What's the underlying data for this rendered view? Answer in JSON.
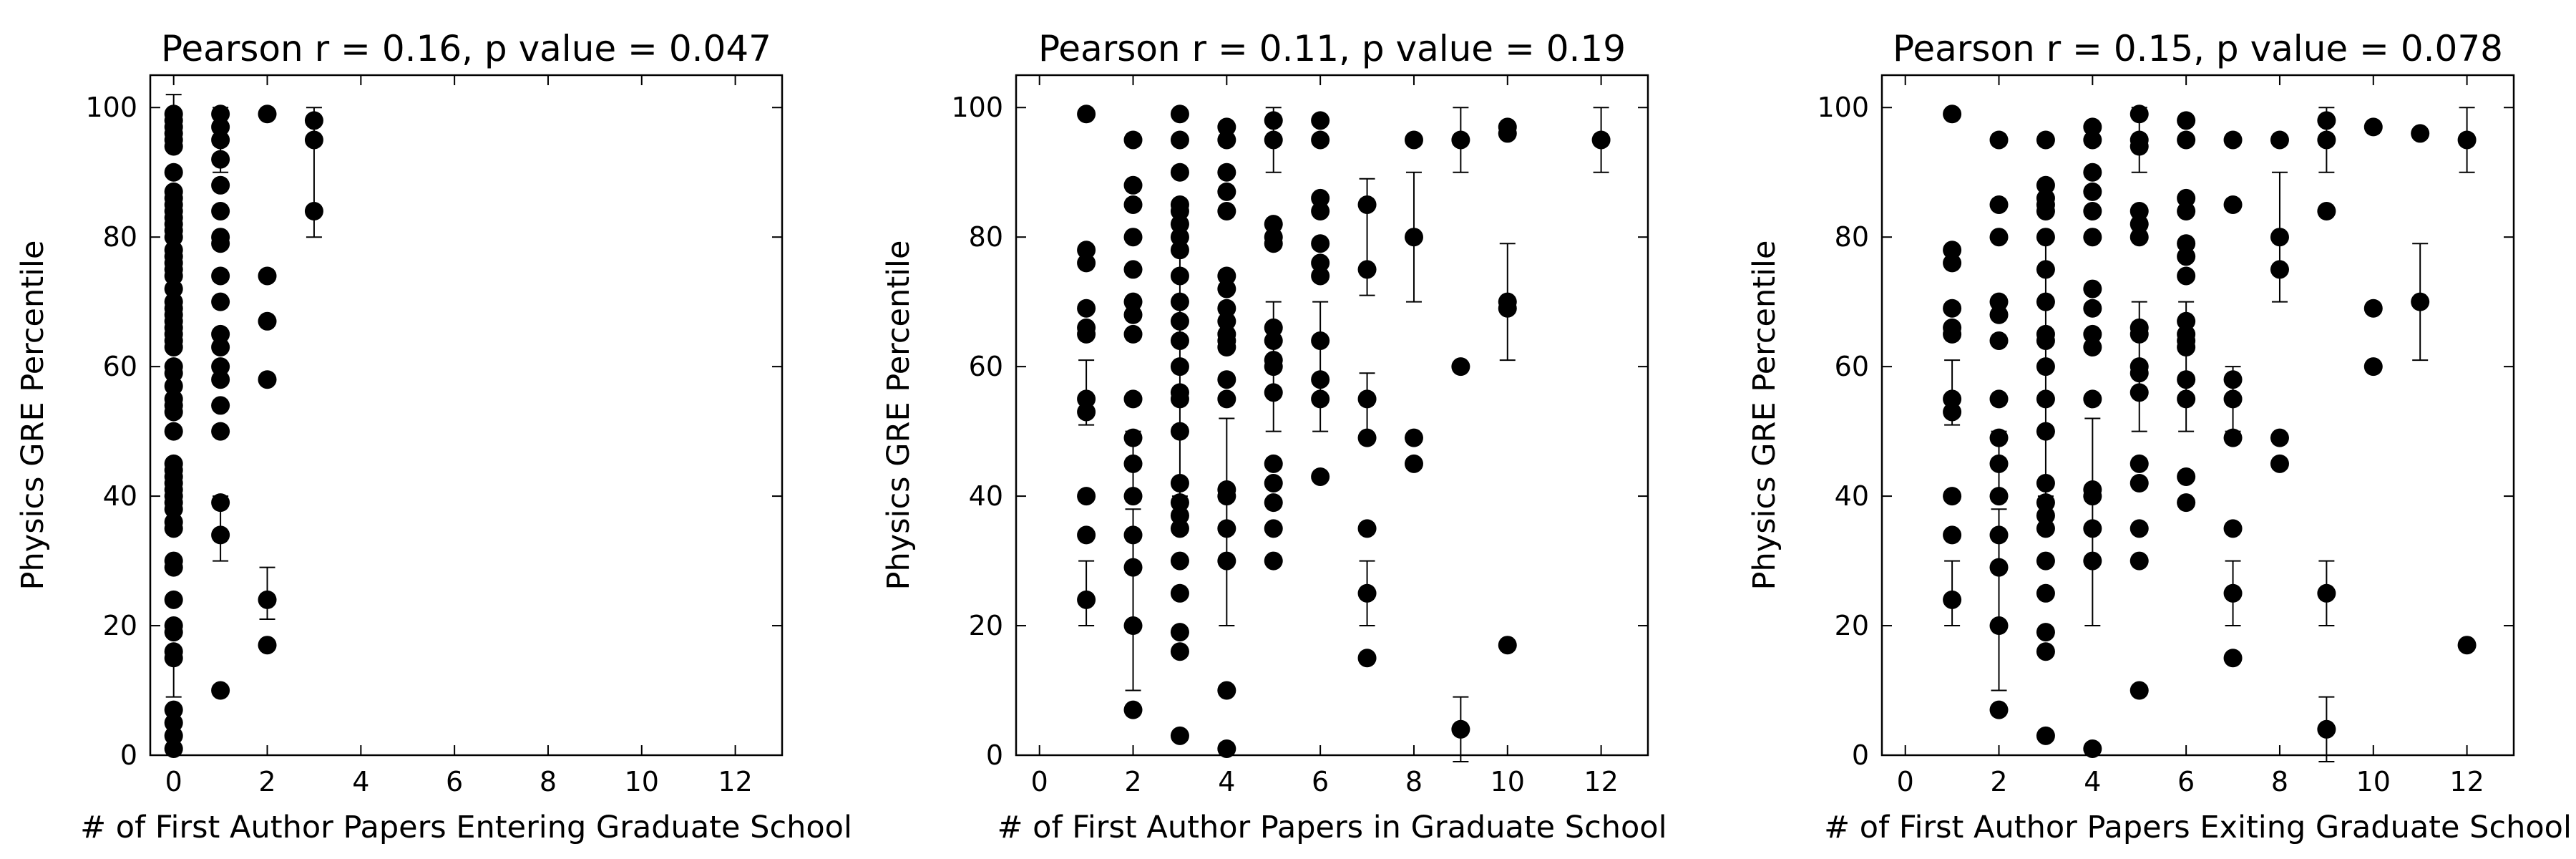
{
  "chart_data": [
    {
      "type": "scatter",
      "title": "Pearson r = 0.16, p value = 0.047",
      "xlabel": "# of First Author Papers Entering Graduate School",
      "ylabel": "Physics GRE Percentile",
      "xlim": [
        -0.5,
        13
      ],
      "ylim": [
        0,
        105
      ],
      "xticks": [
        0,
        2,
        4,
        6,
        8,
        10,
        12
      ],
      "yticks": [
        0,
        20,
        40,
        60,
        80,
        100
      ],
      "grid": false,
      "points": [
        [
          0,
          99
        ],
        [
          0,
          98
        ],
        [
          0,
          97
        ],
        [
          0,
          96
        ],
        [
          0,
          95
        ],
        [
          0,
          94
        ],
        [
          0,
          90
        ],
        [
          0,
          87
        ],
        [
          0,
          86
        ],
        [
          0,
          85
        ],
        [
          0,
          84
        ],
        [
          0,
          83
        ],
        [
          0,
          82
        ],
        [
          0,
          81
        ],
        [
          0,
          80
        ],
        [
          0,
          78
        ],
        [
          0,
          77
        ],
        [
          0,
          76
        ],
        [
          0,
          75
        ],
        [
          0,
          74
        ],
        [
          0,
          72
        ],
        [
          0,
          70
        ],
        [
          0,
          69
        ],
        [
          0,
          68
        ],
        [
          0,
          67
        ],
        [
          0,
          66
        ],
        [
          0,
          65
        ],
        [
          0,
          64
        ],
        [
          0,
          63
        ],
        [
          0,
          60
        ],
        [
          0,
          59
        ],
        [
          0,
          57
        ],
        [
          0,
          55
        ],
        [
          0,
          54
        ],
        [
          0,
          53
        ],
        [
          0,
          50
        ],
        [
          0,
          45
        ],
        [
          0,
          44
        ],
        [
          0,
          43
        ],
        [
          0,
          42
        ],
        [
          0,
          41
        ],
        [
          0,
          40
        ],
        [
          0,
          39
        ],
        [
          0,
          38
        ],
        [
          0,
          36
        ],
        [
          0,
          35
        ],
        [
          0,
          30
        ],
        [
          0,
          29
        ],
        [
          0,
          24
        ],
        [
          0,
          20
        ],
        [
          0,
          19
        ],
        [
          0,
          16
        ],
        [
          0,
          15
        ],
        [
          0,
          7
        ],
        [
          0,
          5
        ],
        [
          0,
          3
        ],
        [
          0,
          1
        ],
        [
          1,
          99
        ],
        [
          1,
          97
        ],
        [
          1,
          95
        ],
        [
          1,
          92
        ],
        [
          1,
          88
        ],
        [
          1,
          84
        ],
        [
          1,
          80
        ],
        [
          1,
          79
        ],
        [
          1,
          74
        ],
        [
          1,
          70
        ],
        [
          1,
          65
        ],
        [
          1,
          63
        ],
        [
          1,
          60
        ],
        [
          1,
          58
        ],
        [
          1,
          54
        ],
        [
          1,
          50
        ],
        [
          1,
          39
        ],
        [
          1,
          34
        ],
        [
          1,
          10
        ],
        [
          2,
          99
        ],
        [
          2,
          74
        ],
        [
          2,
          67
        ],
        [
          2,
          58
        ],
        [
          2,
          24
        ],
        [
          2,
          17
        ],
        [
          3,
          98
        ],
        [
          3,
          95
        ],
        [
          3,
          84
        ]
      ],
      "error_bars": [
        [
          0,
          99,
          3
        ],
        [
          0,
          12,
          3
        ],
        [
          1,
          95,
          5
        ],
        [
          1,
          35,
          5
        ],
        [
          2,
          25,
          4
        ],
        [
          3,
          90,
          10
        ]
      ]
    },
    {
      "type": "scatter",
      "title": "Pearson r = 0.11, p value = 0.19",
      "xlabel": "# of First Author Papers in Graduate School",
      "ylabel": "Physics GRE Percentile",
      "xlim": [
        -0.5,
        13
      ],
      "ylim": [
        0,
        105
      ],
      "xticks": [
        0,
        2,
        4,
        6,
        8,
        10,
        12
      ],
      "yticks": [
        0,
        20,
        40,
        60,
        80,
        100
      ],
      "grid": false,
      "points": [
        [
          1,
          99
        ],
        [
          1,
          78
        ],
        [
          1,
          76
        ],
        [
          1,
          69
        ],
        [
          1,
          66
        ],
        [
          1,
          65
        ],
        [
          1,
          55
        ],
        [
          1,
          53
        ],
        [
          1,
          40
        ],
        [
          1,
          34
        ],
        [
          1,
          24
        ],
        [
          2,
          95
        ],
        [
          2,
          88
        ],
        [
          2,
          85
        ],
        [
          2,
          80
        ],
        [
          2,
          75
        ],
        [
          2,
          70
        ],
        [
          2,
          68
        ],
        [
          2,
          65
        ],
        [
          2,
          55
        ],
        [
          2,
          49
        ],
        [
          2,
          45
        ],
        [
          2,
          40
        ],
        [
          2,
          34
        ],
        [
          2,
          29
        ],
        [
          2,
          20
        ],
        [
          2,
          7
        ],
        [
          3,
          99
        ],
        [
          3,
          95
        ],
        [
          3,
          90
        ],
        [
          3,
          85
        ],
        [
          3,
          84
        ],
        [
          3,
          82
        ],
        [
          3,
          80
        ],
        [
          3,
          78
        ],
        [
          3,
          74
        ],
        [
          3,
          70
        ],
        [
          3,
          67
        ],
        [
          3,
          64
        ],
        [
          3,
          60
        ],
        [
          3,
          56
        ],
        [
          3,
          55
        ],
        [
          3,
          50
        ],
        [
          3,
          42
        ],
        [
          3,
          39
        ],
        [
          3,
          37
        ],
        [
          3,
          35
        ],
        [
          3,
          30
        ],
        [
          3,
          25
        ],
        [
          3,
          19
        ],
        [
          3,
          16
        ],
        [
          3,
          3
        ],
        [
          4,
          97
        ],
        [
          4,
          95
        ],
        [
          4,
          90
        ],
        [
          4,
          87
        ],
        [
          4,
          84
        ],
        [
          4,
          74
        ],
        [
          4,
          72
        ],
        [
          4,
          69
        ],
        [
          4,
          67
        ],
        [
          4,
          65
        ],
        [
          4,
          64
        ],
        [
          4,
          63
        ],
        [
          4,
          58
        ],
        [
          4,
          55
        ],
        [
          4,
          41
        ],
        [
          4,
          40
        ],
        [
          4,
          35
        ],
        [
          4,
          30
        ],
        [
          4,
          10
        ],
        [
          4,
          1
        ],
        [
          5,
          98
        ],
        [
          5,
          95
        ],
        [
          5,
          82
        ],
        [
          5,
          80
        ],
        [
          5,
          79
        ],
        [
          5,
          66
        ],
        [
          5,
          64
        ],
        [
          5,
          61
        ],
        [
          5,
          60
        ],
        [
          5,
          56
        ],
        [
          5,
          45
        ],
        [
          5,
          42
        ],
        [
          5,
          39
        ],
        [
          5,
          35
        ],
        [
          5,
          30
        ],
        [
          6,
          98
        ],
        [
          6,
          95
        ],
        [
          6,
          86
        ],
        [
          6,
          84
        ],
        [
          6,
          79
        ],
        [
          6,
          76
        ],
        [
          6,
          74
        ],
        [
          6,
          64
        ],
        [
          6,
          58
        ],
        [
          6,
          55
        ],
        [
          6,
          43
        ],
        [
          7,
          85
        ],
        [
          7,
          75
        ],
        [
          7,
          55
        ],
        [
          7,
          49
        ],
        [
          7,
          35
        ],
        [
          7,
          25
        ],
        [
          7,
          15
        ],
        [
          8,
          95
        ],
        [
          8,
          80
        ],
        [
          8,
          49
        ],
        [
          8,
          45
        ],
        [
          9,
          95
        ],
        [
          9,
          60
        ],
        [
          9,
          4
        ],
        [
          10,
          97
        ],
        [
          10,
          96
        ],
        [
          10,
          70
        ],
        [
          10,
          69
        ],
        [
          10,
          17
        ],
        [
          12,
          95
        ]
      ],
      "error_bars": [
        [
          1,
          56,
          5
        ],
        [
          1,
          25,
          5
        ],
        [
          2,
          24,
          14
        ],
        [
          2,
          45,
          5
        ],
        [
          3,
          60,
          20
        ],
        [
          4,
          36,
          16
        ],
        [
          5,
          95,
          5
        ],
        [
          5,
          60,
          10
        ],
        [
          6,
          60,
          10
        ],
        [
          7,
          80,
          9
        ],
        [
          7,
          54,
          5
        ],
        [
          7,
          25,
          5
        ],
        [
          8,
          80,
          10
        ],
        [
          9,
          95,
          5
        ],
        [
          9,
          4,
          5
        ],
        [
          10,
          70,
          9
        ],
        [
          12,
          95,
          5
        ]
      ]
    },
    {
      "type": "scatter",
      "title": "Pearson r = 0.15, p value = 0.078",
      "xlabel": "# of First Author Papers Exiting Graduate School",
      "ylabel": "Physics GRE Percentile",
      "xlim": [
        -0.5,
        13
      ],
      "ylim": [
        0,
        105
      ],
      "xticks": [
        0,
        2,
        4,
        6,
        8,
        10,
        12
      ],
      "yticks": [
        0,
        20,
        40,
        60,
        80,
        100
      ],
      "grid": false,
      "points": [
        [
          1,
          99
        ],
        [
          1,
          78
        ],
        [
          1,
          76
        ],
        [
          1,
          69
        ],
        [
          1,
          66
        ],
        [
          1,
          65
        ],
        [
          1,
          55
        ],
        [
          1,
          53
        ],
        [
          1,
          40
        ],
        [
          1,
          34
        ],
        [
          1,
          24
        ],
        [
          2,
          95
        ],
        [
          2,
          85
        ],
        [
          2,
          80
        ],
        [
          2,
          70
        ],
        [
          2,
          68
        ],
        [
          2,
          64
        ],
        [
          2,
          55
        ],
        [
          2,
          49
        ],
        [
          2,
          45
        ],
        [
          2,
          40
        ],
        [
          2,
          34
        ],
        [
          2,
          29
        ],
        [
          2,
          20
        ],
        [
          2,
          7
        ],
        [
          3,
          95
        ],
        [
          3,
          88
        ],
        [
          3,
          86
        ],
        [
          3,
          85
        ],
        [
          3,
          84
        ],
        [
          3,
          80
        ],
        [
          3,
          75
        ],
        [
          3,
          70
        ],
        [
          3,
          65
        ],
        [
          3,
          64
        ],
        [
          3,
          60
        ],
        [
          3,
          55
        ],
        [
          3,
          50
        ],
        [
          3,
          42
        ],
        [
          3,
          39
        ],
        [
          3,
          37
        ],
        [
          3,
          35
        ],
        [
          3,
          30
        ],
        [
          3,
          25
        ],
        [
          3,
          19
        ],
        [
          3,
          16
        ],
        [
          3,
          3
        ],
        [
          4,
          97
        ],
        [
          4,
          95
        ],
        [
          4,
          90
        ],
        [
          4,
          87
        ],
        [
          4,
          84
        ],
        [
          4,
          80
        ],
        [
          4,
          72
        ],
        [
          4,
          69
        ],
        [
          4,
          65
        ],
        [
          4,
          63
        ],
        [
          4,
          55
        ],
        [
          4,
          41
        ],
        [
          4,
          40
        ],
        [
          4,
          35
        ],
        [
          4,
          30
        ],
        [
          4,
          1
        ],
        [
          5,
          99
        ],
        [
          5,
          95
        ],
        [
          5,
          94
        ],
        [
          5,
          84
        ],
        [
          5,
          82
        ],
        [
          5,
          80
        ],
        [
          5,
          66
        ],
        [
          5,
          65
        ],
        [
          5,
          60
        ],
        [
          5,
          59
        ],
        [
          5,
          56
        ],
        [
          5,
          45
        ],
        [
          5,
          42
        ],
        [
          5,
          35
        ],
        [
          5,
          30
        ],
        [
          5,
          10
        ],
        [
          6,
          98
        ],
        [
          6,
          95
        ],
        [
          6,
          86
        ],
        [
          6,
          84
        ],
        [
          6,
          79
        ],
        [
          6,
          77
        ],
        [
          6,
          74
        ],
        [
          6,
          67
        ],
        [
          6,
          65
        ],
        [
          6,
          64
        ],
        [
          6,
          63
        ],
        [
          6,
          58
        ],
        [
          6,
          55
        ],
        [
          6,
          43
        ],
        [
          6,
          39
        ],
        [
          7,
          95
        ],
        [
          7,
          85
        ],
        [
          7,
          58
        ],
        [
          7,
          55
        ],
        [
          7,
          49
        ],
        [
          7,
          35
        ],
        [
          7,
          25
        ],
        [
          7,
          15
        ],
        [
          8,
          95
        ],
        [
          8,
          80
        ],
        [
          8,
          75
        ],
        [
          8,
          49
        ],
        [
          8,
          45
        ],
        [
          9,
          98
        ],
        [
          9,
          95
        ],
        [
          9,
          84
        ],
        [
          9,
          25
        ],
        [
          9,
          4
        ],
        [
          10,
          97
        ],
        [
          10,
          69
        ],
        [
          10,
          60
        ],
        [
          11,
          96
        ],
        [
          11,
          70
        ],
        [
          12,
          95
        ],
        [
          12,
          17
        ]
      ],
      "error_bars": [
        [
          1,
          56,
          5
        ],
        [
          1,
          25,
          5
        ],
        [
          2,
          24,
          14
        ],
        [
          2,
          45,
          5
        ],
        [
          3,
          60,
          20
        ],
        [
          4,
          36,
          16
        ],
        [
          5,
          95,
          5
        ],
        [
          5,
          60,
          10
        ],
        [
          6,
          60,
          10
        ],
        [
          7,
          55,
          5
        ],
        [
          7,
          25,
          5
        ],
        [
          8,
          80,
          10
        ],
        [
          9,
          95,
          5
        ],
        [
          9,
          25,
          5
        ],
        [
          9,
          4,
          5
        ],
        [
          11,
          70,
          9
        ],
        [
          12,
          95,
          5
        ]
      ]
    }
  ]
}
